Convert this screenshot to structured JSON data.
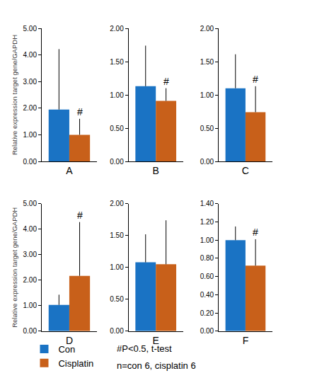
{
  "chart_data": [
    {
      "type": "bar",
      "categories": [
        "A"
      ],
      "y_label": "Relative expression target gene/GAPDH",
      "series": [
        {
          "name": "Con",
          "color": "#1a73c4",
          "values": [
            1.95
          ],
          "error": [
            2.27
          ]
        },
        {
          "name": "Cisplatin",
          "color": "#c8601a",
          "values": [
            1.0
          ],
          "error": [
            0.6
          ]
        }
      ],
      "ylim": [
        0,
        5
      ],
      "yticks": [
        {
          "value": 0,
          "label": "0.00"
        },
        {
          "value": 1,
          "label": "1.00"
        },
        {
          "value": 2,
          "label": "2.00"
        },
        {
          "value": 3,
          "label": "3.00"
        },
        {
          "value": 4,
          "label": "4.00"
        },
        {
          "value": 5,
          "label": "5.00"
        }
      ],
      "grid": false,
      "annotations": [
        {
          "text": "#",
          "series": "Cisplatin"
        }
      ]
    },
    {
      "type": "bar",
      "categories": [
        "B"
      ],
      "series": [
        {
          "name": "Con",
          "color": "#1a73c4",
          "values": [
            1.13
          ],
          "error": [
            0.61
          ]
        },
        {
          "name": "Cisplatin",
          "color": "#c8601a",
          "values": [
            0.91
          ],
          "error": [
            0.19
          ]
        }
      ],
      "ylim": [
        0,
        2
      ],
      "yticks": [
        {
          "value": 0,
          "label": "0.00"
        },
        {
          "value": 0.5,
          "label": "0.50"
        },
        {
          "value": 1,
          "label": "1.00"
        },
        {
          "value": 1.5,
          "label": "1.50"
        },
        {
          "value": 2,
          "label": "2.00"
        }
      ],
      "grid": false,
      "annotations": [
        {
          "text": "#",
          "series": "Cisplatin"
        }
      ]
    },
    {
      "type": "bar",
      "categories": [
        "C"
      ],
      "series": [
        {
          "name": "Con",
          "color": "#1a73c4",
          "values": [
            1.1
          ],
          "error": [
            0.51
          ]
        },
        {
          "name": "Cisplatin",
          "color": "#c8601a",
          "values": [
            0.74
          ],
          "error": [
            0.39
          ]
        }
      ],
      "ylim": [
        0,
        2
      ],
      "yticks": [
        {
          "value": 0,
          "label": "0.00"
        },
        {
          "value": 0.5,
          "label": "0.50"
        },
        {
          "value": 1,
          "label": "1.00"
        },
        {
          "value": 1.5,
          "label": "1.50"
        },
        {
          "value": 2,
          "label": "2.00"
        }
      ],
      "grid": false,
      "annotations": [
        {
          "text": "#",
          "series": "Cisplatin"
        }
      ]
    },
    {
      "type": "bar",
      "categories": [
        "D"
      ],
      "y_label": "Relative expression target gene/GAPDH",
      "series": [
        {
          "name": "Con",
          "color": "#1a73c4",
          "values": [
            1.03
          ],
          "error": [
            0.4
          ]
        },
        {
          "name": "Cisplatin",
          "color": "#c8601a",
          "values": [
            2.17
          ],
          "error": [
            2.11
          ]
        }
      ],
      "ylim": [
        0,
        5
      ],
      "yticks": [
        {
          "value": 0,
          "label": "0.00"
        },
        {
          "value": 1,
          "label": "1.00"
        },
        {
          "value": 2,
          "label": "2.00"
        },
        {
          "value": 3,
          "label": "3.00"
        },
        {
          "value": 4,
          "label": "4.00"
        },
        {
          "value": 5,
          "label": "5.00"
        }
      ],
      "grid": false,
      "annotations": [
        {
          "text": "#",
          "series": "Cisplatin"
        }
      ]
    },
    {
      "type": "bar",
      "categories": [
        "E"
      ],
      "series": [
        {
          "name": "Con",
          "color": "#1a73c4",
          "values": [
            1.08
          ],
          "error": [
            0.44
          ]
        },
        {
          "name": "Cisplatin",
          "color": "#c8601a",
          "values": [
            1.05
          ],
          "error": [
            0.69
          ]
        }
      ],
      "ylim": [
        0,
        2
      ],
      "yticks": [
        {
          "value": 0,
          "label": "0.00"
        },
        {
          "value": 0.5,
          "label": "0.50"
        },
        {
          "value": 1,
          "label": "1.00"
        },
        {
          "value": 1.5,
          "label": "1.50"
        },
        {
          "value": 2,
          "label": "2.00"
        }
      ],
      "grid": false
    },
    {
      "type": "bar",
      "categories": [
        "F"
      ],
      "series": [
        {
          "name": "Con",
          "color": "#1a73c4",
          "values": [
            1.0
          ],
          "error": [
            0.15
          ]
        },
        {
          "name": "Cisplatin",
          "color": "#c8601a",
          "values": [
            0.72
          ],
          "error": [
            0.29
          ]
        }
      ],
      "ylim": [
        0,
        1.4
      ],
      "yticks": [
        {
          "value": 0,
          "label": "0.00"
        },
        {
          "value": 0.2,
          "label": "0.20"
        },
        {
          "value": 0.4,
          "label": "0.40"
        },
        {
          "value": 0.6,
          "label": "0.60"
        },
        {
          "value": 0.8,
          "label": "0.80"
        },
        {
          "value": 1,
          "label": "1.00"
        },
        {
          "value": 1.2,
          "label": "1.20"
        },
        {
          "value": 1.4,
          "label": "1.40"
        }
      ],
      "grid": false,
      "annotations": [
        {
          "text": "#",
          "series": "Cisplatin"
        }
      ]
    }
  ],
  "legend": "bottom left",
  "notes": [
    "#P<0.5, t-test",
    "n=con 6, cisplatin 6"
  ]
}
